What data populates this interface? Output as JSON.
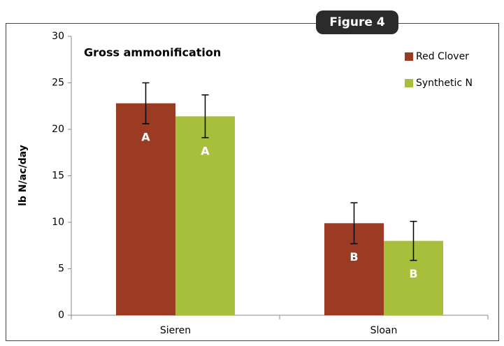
{
  "figure_label": "Figure 4",
  "chart_data": {
    "type": "bar",
    "title": "Gross ammonification",
    "y_label": "lb N/ac/day",
    "categories": [
      "Sieren",
      "Sloan"
    ],
    "series": [
      {
        "name": "Red Clover",
        "color": "#9c3b23",
        "values": [
          22.8,
          9.9
        ],
        "errors": [
          2.2,
          2.2
        ],
        "letters": [
          "A",
          "B"
        ]
      },
      {
        "name": "Synthetic N",
        "color": "#a8bf3b",
        "values": [
          21.4,
          8.0
        ],
        "errors": [
          2.3,
          2.1
        ],
        "letters": [
          "A",
          "B"
        ]
      }
    ],
    "ylim": [
      0,
      30
    ],
    "yticks": [
      0,
      5,
      10,
      15,
      20,
      25,
      30
    ],
    "grid": false,
    "legend": "top-right"
  }
}
